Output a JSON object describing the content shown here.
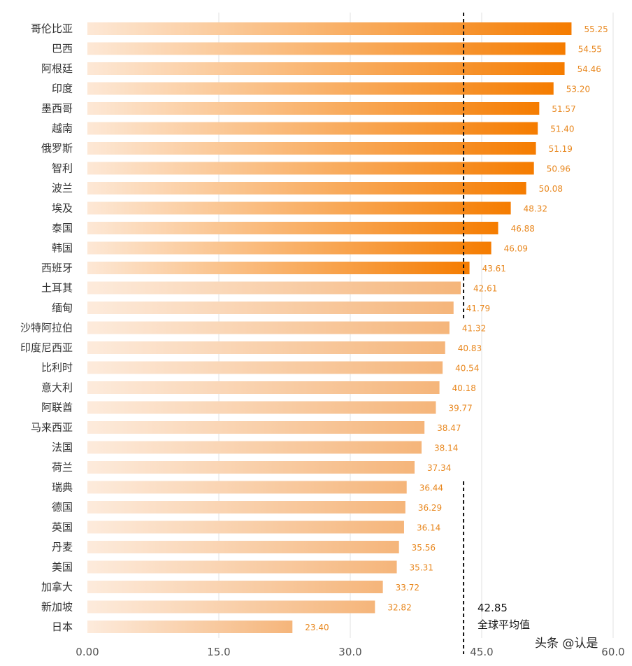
{
  "chart_data": {
    "type": "bar",
    "orientation": "horizontal",
    "categories": [
      "哥伦比亚",
      "巴西",
      "阿根廷",
      "印度",
      "墨西哥",
      "越南",
      "俄罗斯",
      "智利",
      "波兰",
      "埃及",
      "泰国",
      "韩国",
      "西班牙",
      "土耳其",
      "缅甸",
      "沙特阿拉伯",
      "印度尼西亚",
      "比利时",
      "意大利",
      "阿联酋",
      "马来西亚",
      "法国",
      "荷兰",
      "瑞典",
      "德国",
      "英国",
      "丹麦",
      "美国",
      "加拿大",
      "新加坡",
      "日本"
    ],
    "values": [
      55.25,
      54.55,
      54.46,
      53.2,
      51.57,
      51.4,
      51.19,
      50.96,
      50.08,
      48.32,
      46.88,
      46.09,
      43.61,
      42.61,
      41.79,
      41.32,
      40.83,
      40.54,
      40.18,
      39.77,
      38.47,
      38.14,
      37.34,
      36.44,
      36.29,
      36.14,
      35.56,
      35.31,
      33.72,
      32.82,
      23.4
    ],
    "value_labels": [
      "55.25",
      "54.55",
      "54.46",
      "53.20",
      "51.57",
      "51.40",
      "51.19",
      "50.96",
      "50.08",
      "48.32",
      "46.88",
      "46.09",
      "43.61",
      "42.61",
      "41.79",
      "41.32",
      "40.83",
      "40.54",
      "40.18",
      "39.77",
      "38.47",
      "38.14",
      "37.34",
      "36.44",
      "36.29",
      "36.14",
      "35.56",
      "35.31",
      "33.72",
      "32.82",
      "23.40"
    ],
    "xlim": [
      0,
      60
    ],
    "x_ticks": [
      "0.00",
      "15.0",
      "30.0",
      "45.0",
      "60.0"
    ],
    "x_tick_values": [
      0,
      15,
      30,
      45,
      60
    ],
    "grid": "vertical",
    "reference_line": {
      "value": 42.85,
      "label_value": "42.85",
      "label": "全球平均值",
      "style": "dashed"
    },
    "colors": {
      "above_average": "#f57c00",
      "below_average": "#f5b57a",
      "bar_start": "#fde8d6",
      "value_label": "#e8871e"
    },
    "title": "",
    "xlabel": "",
    "ylabel": ""
  },
  "watermark": "头条 @认是"
}
